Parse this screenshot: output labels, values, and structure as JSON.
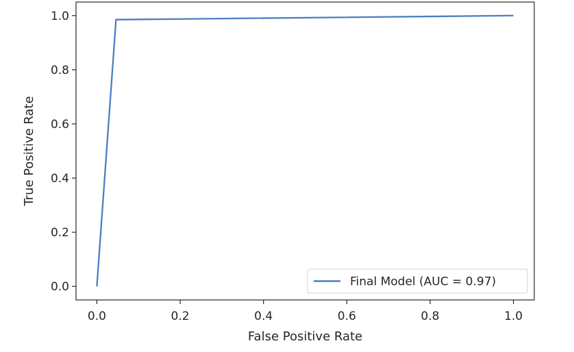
{
  "chart_data": {
    "type": "line",
    "title": "",
    "xlabel": "False Positive Rate",
    "ylabel": "True Positive Rate",
    "xlim": [
      -0.05,
      1.05
    ],
    "ylim": [
      -0.05,
      1.05
    ],
    "xticks": [
      0.0,
      0.2,
      0.4,
      0.6,
      0.8,
      1.0
    ],
    "yticks": [
      0.0,
      0.2,
      0.4,
      0.6,
      0.8,
      1.0
    ],
    "xtick_labels": [
      "0.0",
      "0.2",
      "0.4",
      "0.6",
      "0.8",
      "1.0"
    ],
    "ytick_labels": [
      "0.0",
      "0.2",
      "0.4",
      "0.6",
      "0.8",
      "1.0"
    ],
    "grid": false,
    "legend_position": "lower-right",
    "series": [
      {
        "name": "Final Model (AUC = 0.97)",
        "color": "#4a7fc0",
        "x": [
          0.0,
          0.046,
          1.0
        ],
        "y": [
          0.0,
          0.985,
          1.0
        ]
      }
    ]
  }
}
